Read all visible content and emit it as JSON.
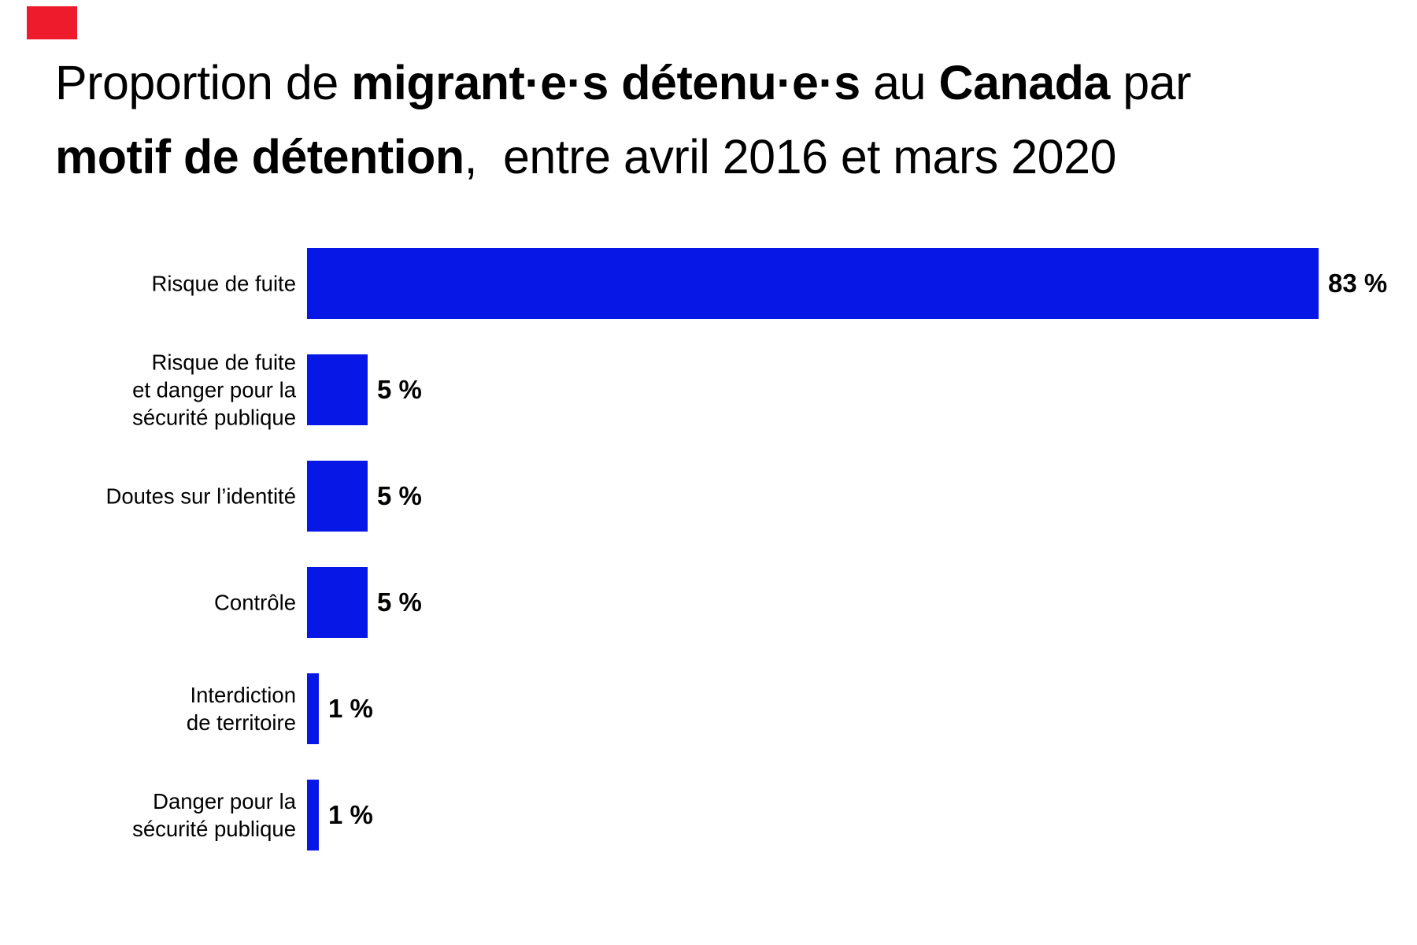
{
  "page": {
    "background": "#ffffff"
  },
  "logo": {
    "label": "red-square-logo",
    "color": "#ee1b2d"
  },
  "title": {
    "plain": "Proportion de migrant·e·s détenu·e·s au Canada par motif de détention,  entre avril 2016 et mars 2020",
    "lines": [
      {
        "segments": [
          {
            "text": "Proportion de ",
            "bold": false
          },
          {
            "text": "migrant·e·s détenu·e·s",
            "bold": true
          },
          {
            "text": " au ",
            "bold": false
          },
          {
            "text": "Canada",
            "bold": true
          },
          {
            "text": " par",
            "bold": false
          }
        ]
      },
      {
        "segments": [
          {
            "text": "motif de détention",
            "bold": true
          },
          {
            "text": ",  entre avril 2016 et mars 2020",
            "bold": false
          }
        ]
      }
    ]
  },
  "chart_data": {
    "type": "bar",
    "orientation": "horizontal",
    "title": "Proportion de migrant·e·s détenu·e·s au Canada par motif de détention, entre avril 2016 et mars 2020",
    "categories": [
      "Risque de fuite",
      "Risque de fuite\net danger pour la\nsécurité publique",
      "Doutes sur l’identité",
      "Contrôle",
      "Interdiction\nde territoire",
      "Danger pour la\nsécurité publique"
    ],
    "values": [
      83,
      5,
      5,
      5,
      1,
      1
    ],
    "value_labels": [
      "83 %",
      "5 %",
      "5 %",
      "5 %",
      "1 %",
      "1 %"
    ],
    "unit": "%",
    "xlim": [
      0,
      100
    ],
    "bar_color": "#0617e6",
    "label_color": "#000000",
    "grid": false,
    "legend": false,
    "xlabel": "",
    "ylabel": ""
  }
}
